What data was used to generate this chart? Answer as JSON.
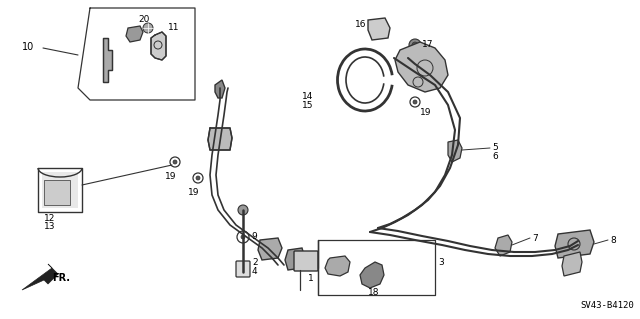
{
  "background_color": "#ffffff",
  "line_color": "#333333",
  "text_color": "#000000",
  "figsize": [
    6.4,
    3.19
  ],
  "dpi": 100,
  "diagram_code": "SV43-B4120"
}
